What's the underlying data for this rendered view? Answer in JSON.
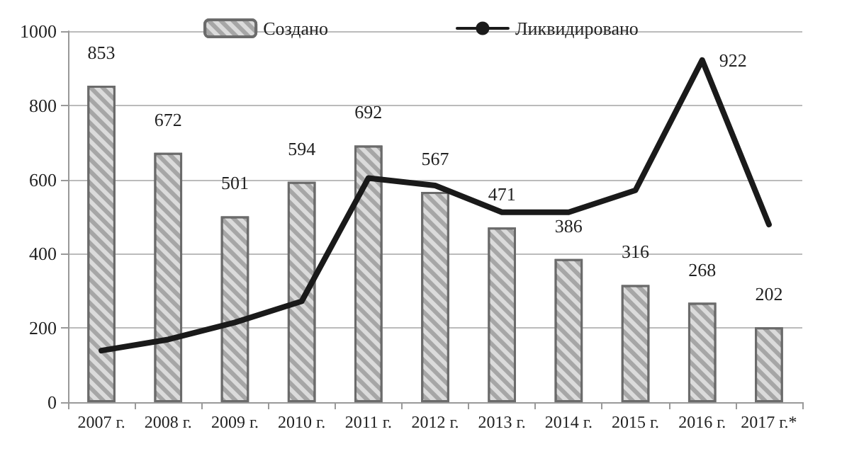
{
  "chart_data": {
    "type": "bar",
    "categories": [
      "2007 г.",
      "2008 г.",
      "2009 г.",
      "2010 г.",
      "2011 г.",
      "2012 г.",
      "2013 г.",
      "2014 г.",
      "2015 г.",
      "2016 г.",
      "2017 г.*"
    ],
    "series": [
      {
        "name": "Создано",
        "color": "#a6a6a6",
        "values": [
          853,
          672,
          501,
          594,
          692,
          567,
          471,
          386,
          316,
          268,
          202
        ],
        "value_labels": [
          "853",
          "672",
          "501",
          "594",
          "692",
          "567",
          "471",
          "386",
          "316",
          "268",
          "202"
        ]
      },
      {
        "name": "Ликвидировано",
        "type": "line",
        "color": "#1a1a1a",
        "values": [
          139,
          169,
          215,
          272,
          604,
          584,
          512,
          512,
          571,
          922,
          479
        ],
        "value_labels": [
          null,
          null,
          null,
          null,
          null,
          null,
          null,
          null,
          null,
          "922",
          null
        ]
      }
    ],
    "ylim": [
      0,
      1000
    ],
    "yticks": [
      0,
      200,
      400,
      600,
      800,
      1000
    ],
    "grid": "y",
    "legend": "top",
    "marker": "none",
    "line_style": "solid"
  }
}
